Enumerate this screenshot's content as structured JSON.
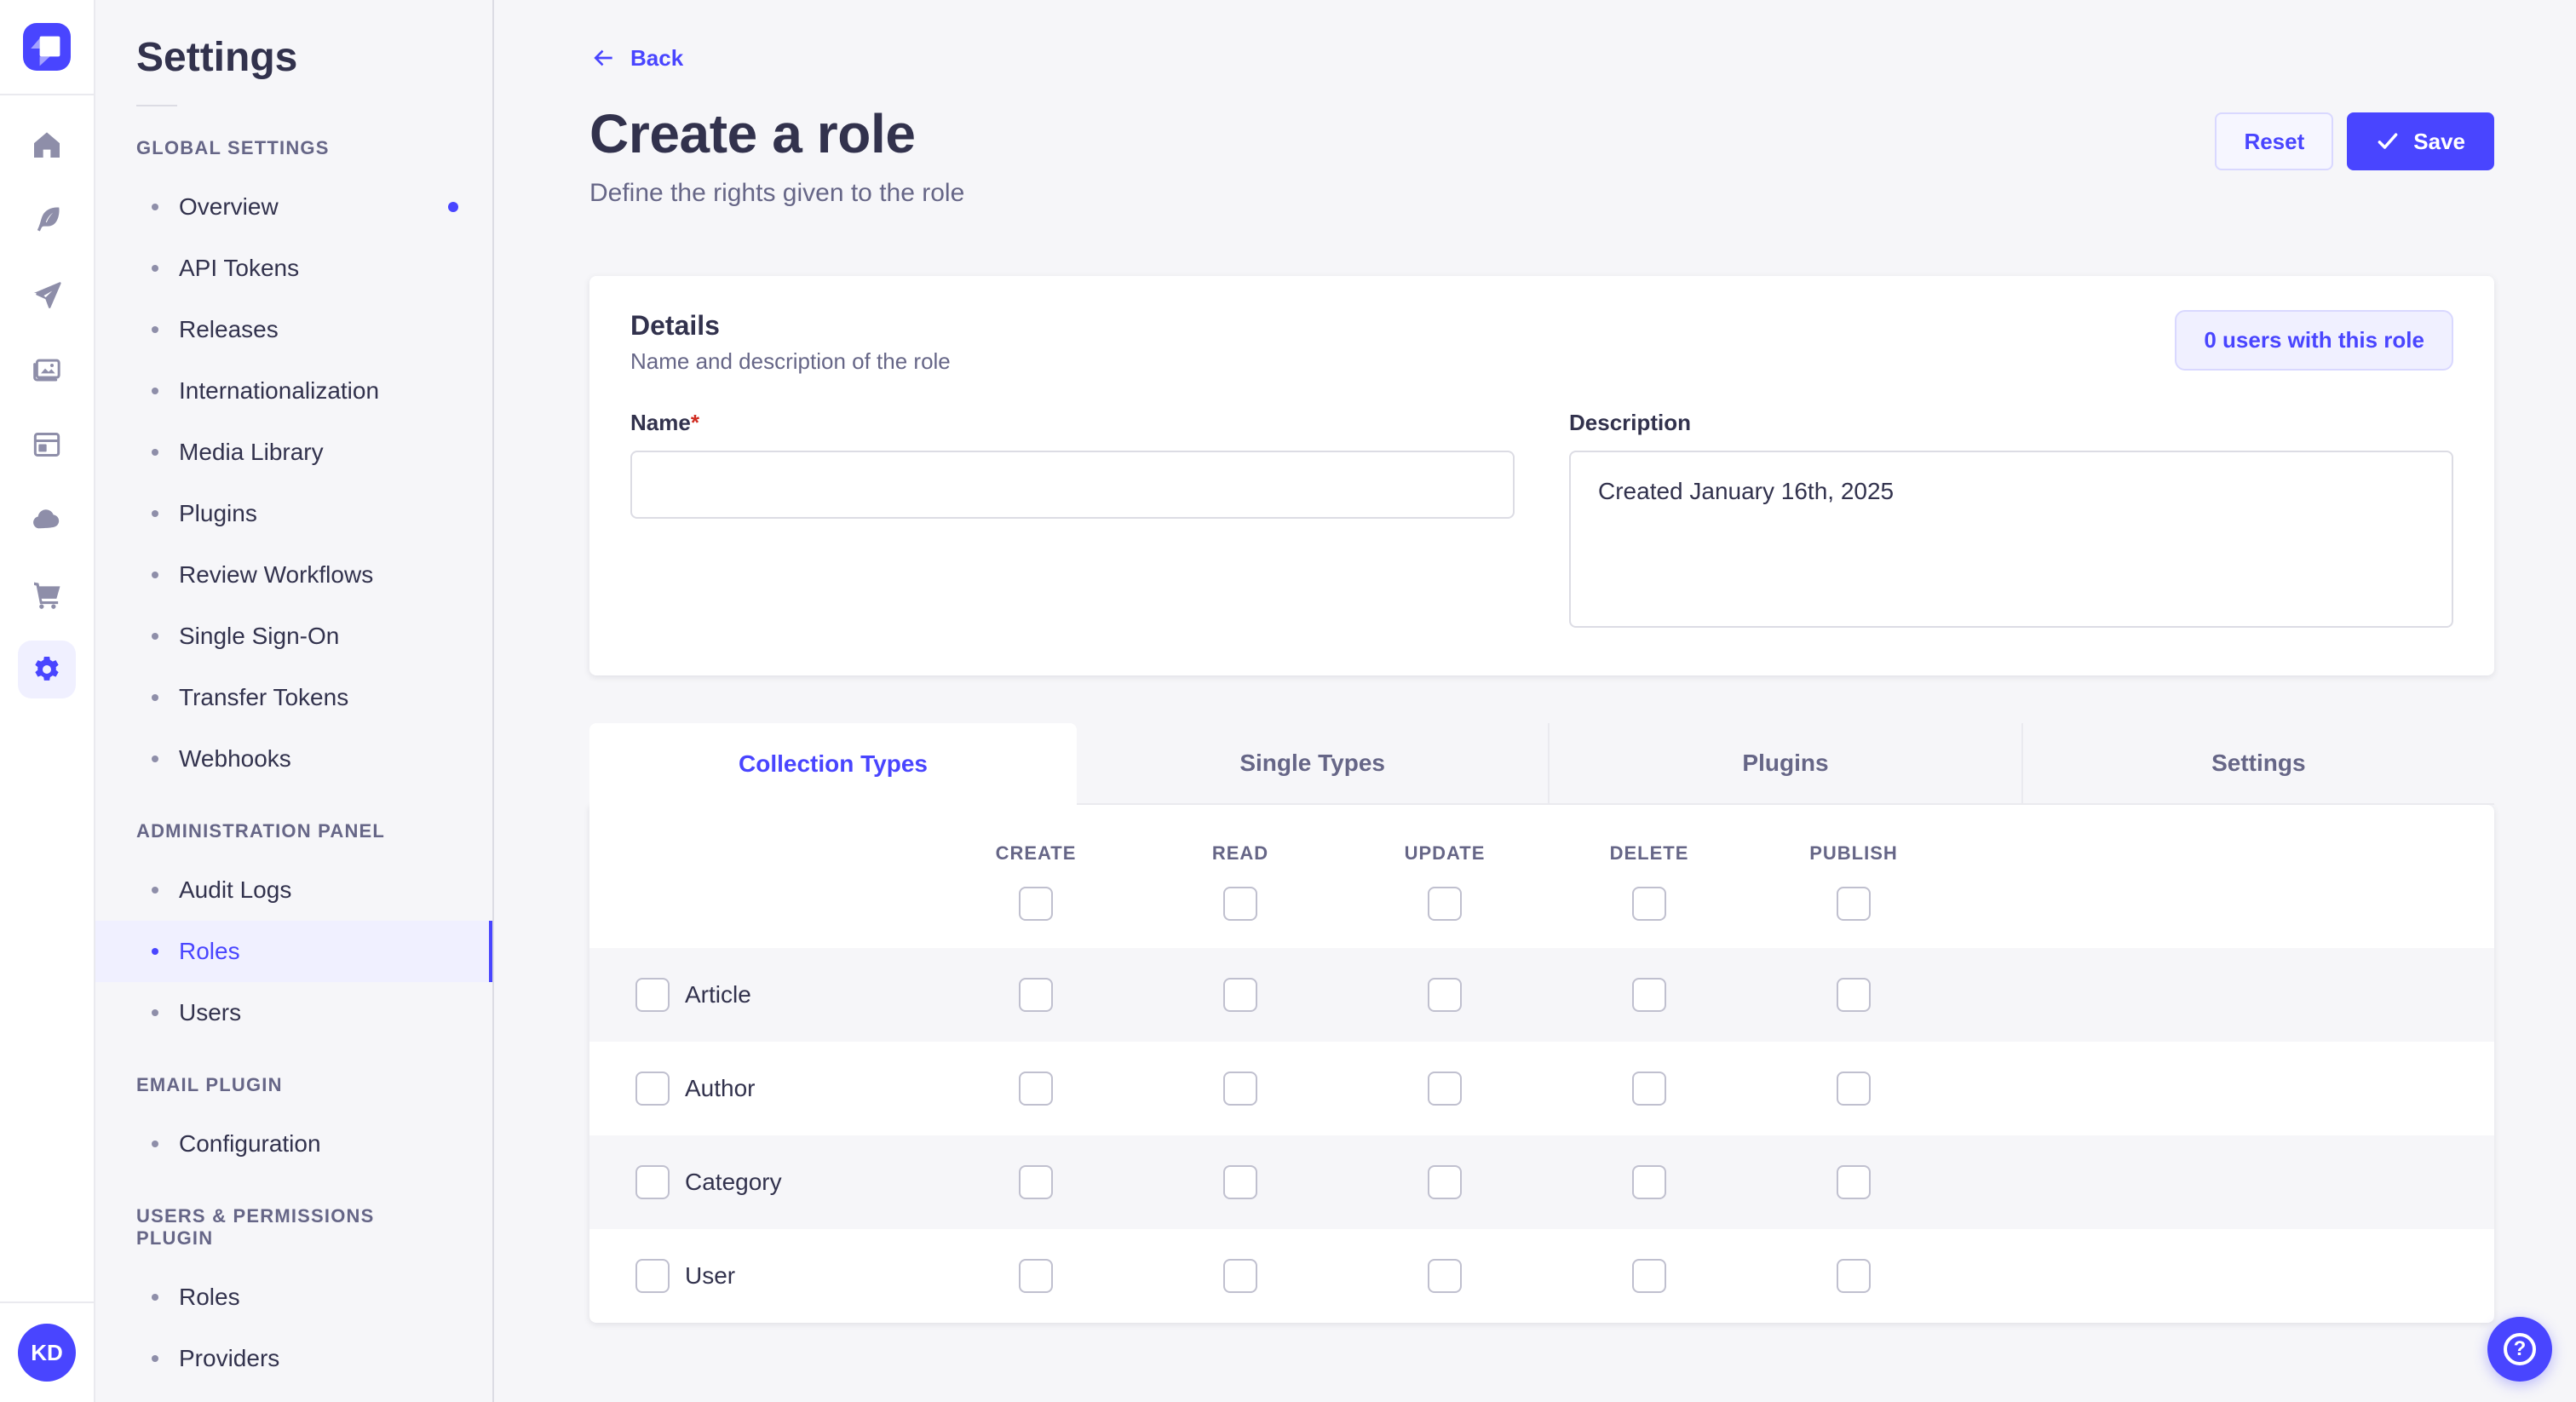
{
  "colors": {
    "accent": "#4945ff",
    "accent_bg": "#f0f0ff",
    "text": "#32324d",
    "text_muted": "#666687",
    "page_bg": "#f6f6f9",
    "border": "#eaeaef",
    "required_mark_color": "#d02b20"
  },
  "rail": {
    "logo_icon": "strapi-logo",
    "nav_icons": [
      "home-icon",
      "feather-icon",
      "send-icon",
      "media-library-icon",
      "layout-icon",
      "cloud-icon",
      "cart-icon",
      "settings-icon"
    ],
    "active_icon": "settings-icon",
    "avatar_initials": "KD"
  },
  "subnav": {
    "title": "Settings",
    "sections": [
      {
        "label": "GLOBAL SETTINGS",
        "items": [
          {
            "label": "Overview",
            "notification": true
          },
          {
            "label": "API Tokens"
          },
          {
            "label": "Releases"
          },
          {
            "label": "Internationalization"
          },
          {
            "label": "Media Library"
          },
          {
            "label": "Plugins"
          },
          {
            "label": "Review Workflows"
          },
          {
            "label": "Single Sign-On"
          },
          {
            "label": "Transfer Tokens"
          },
          {
            "label": "Webhooks"
          }
        ]
      },
      {
        "label": "ADMINISTRATION PANEL",
        "items": [
          {
            "label": "Audit Logs"
          },
          {
            "label": "Roles",
            "active": true
          },
          {
            "label": "Users"
          }
        ]
      },
      {
        "label": "EMAIL PLUGIN",
        "items": [
          {
            "label": "Configuration"
          }
        ]
      },
      {
        "label": "USERS & PERMISSIONS PLUGIN",
        "items": [
          {
            "label": "Roles"
          },
          {
            "label": "Providers"
          }
        ]
      }
    ]
  },
  "header": {
    "back_label": "Back",
    "title": "Create a role",
    "subtitle": "Define the rights given to the role",
    "reset_label": "Reset",
    "save_label": "Save"
  },
  "details_card": {
    "title": "Details",
    "subtitle": "Name and description of the role",
    "users_button": "0 users with this role",
    "name": {
      "label": "Name",
      "required_mark": "*",
      "value": ""
    },
    "description": {
      "label": "Description",
      "value": "Created January 16th, 2025"
    }
  },
  "tabs": [
    {
      "label": "Collection Types",
      "active": true
    },
    {
      "label": "Single Types"
    },
    {
      "label": "Plugins"
    },
    {
      "label": "Settings"
    }
  ],
  "permissions_table": {
    "columns": [
      "CREATE",
      "READ",
      "UPDATE",
      "DELETE",
      "PUBLISH"
    ],
    "rows": [
      "Article",
      "Author",
      "Category",
      "User"
    ],
    "all_checkboxes_unchecked": true
  },
  "help_button": {
    "icon": "question-mark-icon"
  }
}
